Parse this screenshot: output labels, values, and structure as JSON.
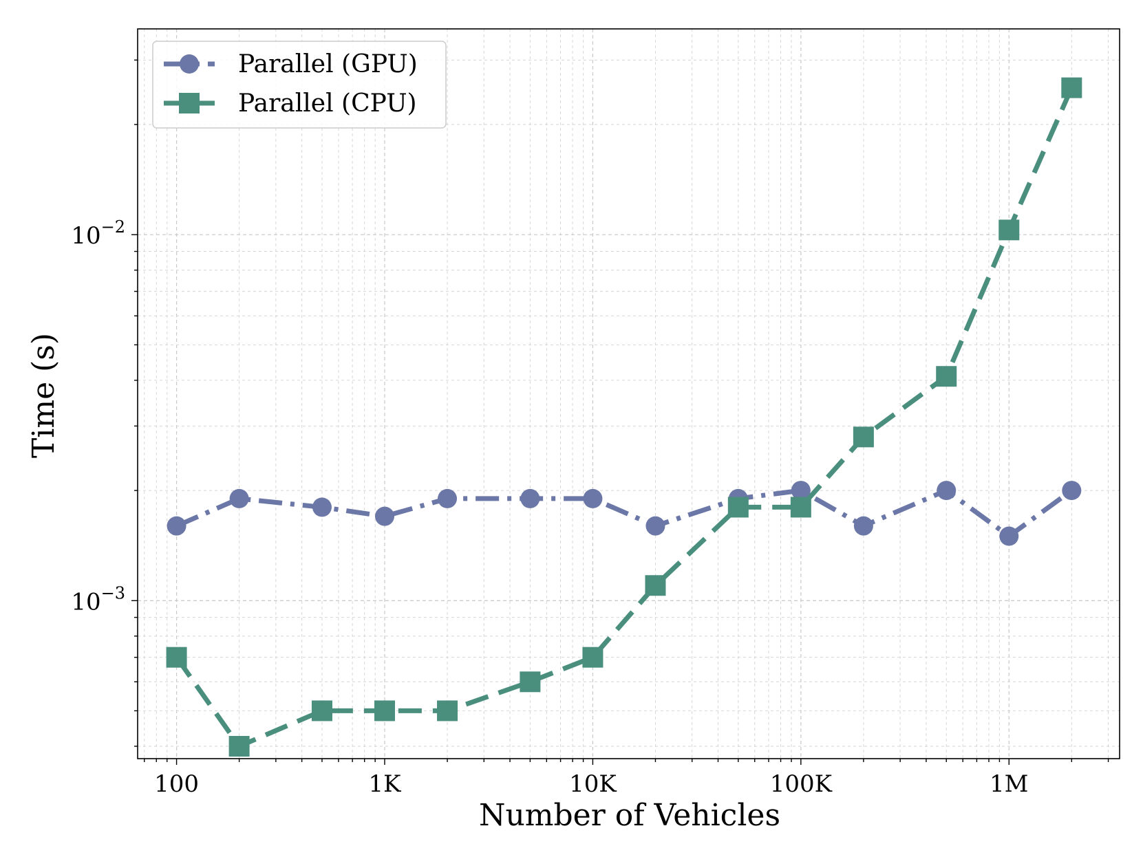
{
  "chart_data": {
    "type": "line",
    "title": "",
    "xlabel": "Number of Vehicles",
    "ylabel": "Time (s)",
    "xscale": "log",
    "yscale": "log",
    "x": [
      100,
      200,
      500,
      1000,
      2000,
      5000,
      10000,
      20000,
      50000,
      100000,
      200000,
      500000,
      1000000,
      2000000
    ],
    "xlim": [
      65,
      3400000
    ],
    "ylim": [
      0.00037,
      0.0365
    ],
    "xticks": [
      {
        "value": 100,
        "label": "100"
      },
      {
        "value": 1000,
        "label": "1K"
      },
      {
        "value": 10000,
        "label": "10K"
      },
      {
        "value": 100000,
        "label": "100K"
      },
      {
        "value": 1000000,
        "label": "1M"
      }
    ],
    "yticks": [
      {
        "value": 0.001,
        "base": "10",
        "exp": "−3"
      },
      {
        "value": 0.01,
        "base": "10",
        "exp": "−2"
      }
    ],
    "grid": true,
    "legend_position": "top-left",
    "series": [
      {
        "name": "Parallel (GPU)",
        "color": "#6b77a6",
        "marker": "circle",
        "linestyle": "dashdot",
        "values": [
          0.0016,
          0.0019,
          0.0018,
          0.0017,
          0.0019,
          0.0019,
          0.0019,
          0.0016,
          0.0019,
          0.002,
          0.0016,
          0.002,
          0.0015,
          0.002
        ]
      },
      {
        "name": "Parallel (CPU)",
        "color": "#4a8f7e",
        "marker": "square",
        "linestyle": "dashed",
        "values": [
          0.0007,
          0.0004,
          0.0005,
          0.0005,
          0.0005,
          0.0006,
          0.0007,
          0.0011,
          0.0018,
          0.0018,
          0.0028,
          0.0041,
          0.0103,
          0.0252
        ]
      }
    ]
  }
}
